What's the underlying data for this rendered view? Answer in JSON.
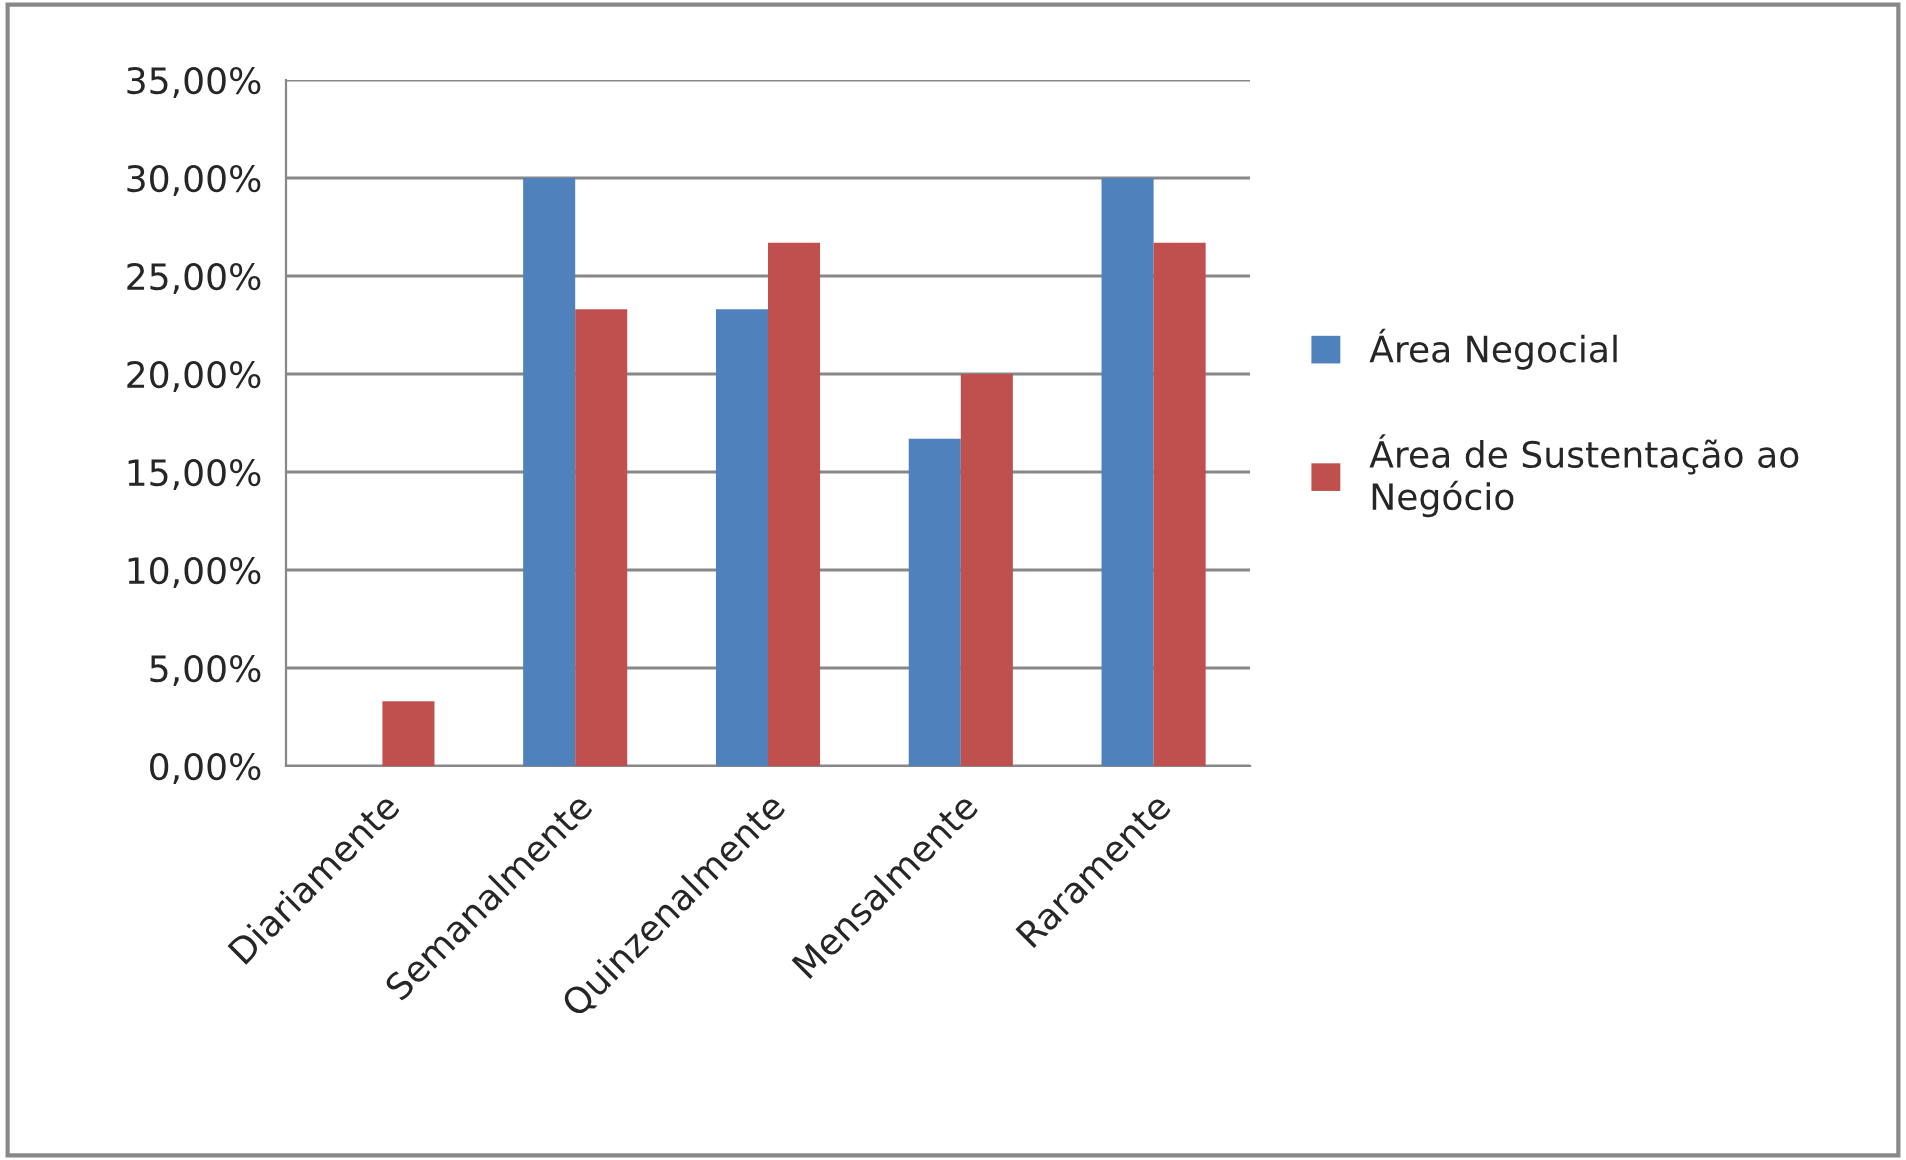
{
  "chart_data": {
    "type": "bar",
    "categories": [
      "Diariamente",
      "Semanalmente",
      "Quinzenalmente",
      "Mensalmente",
      "Raramente"
    ],
    "series": [
      {
        "name": "Área Negocial",
        "color": "#4f81bd",
        "values": [
          0,
          30,
          23.3,
          16.7,
          30
        ]
      },
      {
        "name": "Área de Sustentação ao Negócio",
        "color": "#c0504d",
        "values": [
          3.3,
          23.3,
          26.7,
          20,
          26.7
        ]
      }
    ],
    "ylim": [
      0,
      35
    ],
    "yticks": [
      {
        "value": 0,
        "label": "0,00%"
      },
      {
        "value": 5,
        "label": "5,00%"
      },
      {
        "value": 10,
        "label": "10,00%"
      },
      {
        "value": 15,
        "label": "15,00%"
      },
      {
        "value": 20,
        "label": "20,00%"
      },
      {
        "value": 25,
        "label": "25,00%"
      },
      {
        "value": 30,
        "label": "30,00%"
      },
      {
        "value": 35,
        "label": "35,00%"
      }
    ],
    "grid": "y",
    "legend": "right"
  }
}
